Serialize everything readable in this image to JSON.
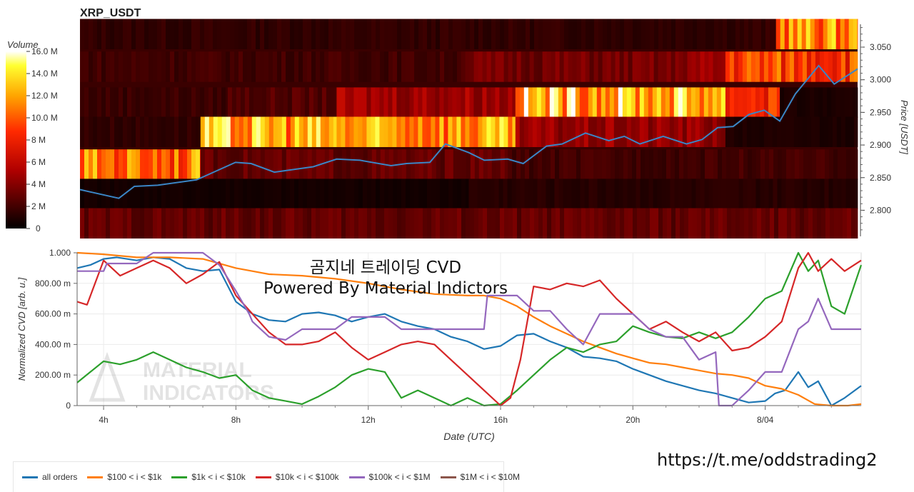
{
  "url_text": "https://t.me/oddstrading2",
  "chart_data": [
    {
      "type": "heatmap",
      "title": "XRP_USDT",
      "ylabel": "Price [USDT]",
      "ylim": [
        2.76,
        3.085
      ],
      "y_ticks": [
        "2.800",
        "2.850",
        "2.900",
        "2.950",
        "3.000",
        "3.050"
      ],
      "colorbar": {
        "title": "Volume",
        "ticks": [
          "0",
          "2 M",
          "4 M",
          "6 M",
          "8 M",
          "10.0 M",
          "12.0 M",
          "14.0 M",
          "16.0 M"
        ],
        "max": 16
      },
      "price_bands": [
        2.78,
        2.825,
        2.87,
        2.92,
        2.965,
        3.02,
        3.07
      ],
      "band_volume_profile": [
        {
          "band": 3.07,
          "pieces": [
            [
              0,
              0.895,
              1.5
            ],
            [
              0.895,
              1.0,
              11.5
            ]
          ]
        },
        {
          "band": 3.02,
          "pieces": [
            [
              0,
              0.49,
              2.0
            ],
            [
              0.49,
              0.77,
              3.5
            ],
            [
              0.77,
              0.83,
              4.5
            ],
            [
              0.83,
              1.0,
              9.5
            ]
          ]
        },
        {
          "band": 2.965,
          "pieces": [
            [
              0,
              0.19,
              1.8
            ],
            [
              0.19,
              0.33,
              2.5
            ],
            [
              0.33,
              0.56,
              5.0
            ],
            [
              0.56,
              0.83,
              13.0
            ],
            [
              0.83,
              0.9,
              9.0
            ],
            [
              0.9,
              1.0,
              0.8
            ]
          ]
        },
        {
          "band": 2.92,
          "pieces": [
            [
              0,
              0.155,
              1.5
            ],
            [
              0.155,
              0.33,
              12.5
            ],
            [
              0.33,
              0.56,
              12.0
            ],
            [
              0.56,
              0.83,
              4.5
            ],
            [
              0.83,
              1.0,
              0.9
            ]
          ]
        },
        {
          "band": 2.87,
          "pieces": [
            [
              0,
              0.155,
              11.0
            ],
            [
              0.155,
              0.55,
              3.0
            ],
            [
              0.55,
              1.0,
              2.0
            ]
          ]
        },
        {
          "band": 2.825,
          "pieces": [
            [
              0,
              0.5,
              0.6
            ],
            [
              0.5,
              1.0,
              1.2
            ]
          ]
        },
        {
          "band": 2.78,
          "pieces": [
            [
              0,
              1.0,
              3.0
            ]
          ]
        }
      ],
      "price_line": {
        "color": "#3b86c6",
        "x": [
          0,
          0.05,
          0.07,
          0.1,
          0.15,
          0.2,
          0.22,
          0.25,
          0.3,
          0.33,
          0.36,
          0.4,
          0.42,
          0.45,
          0.47,
          0.5,
          0.52,
          0.55,
          0.57,
          0.6,
          0.62,
          0.65,
          0.68,
          0.7,
          0.72,
          0.75,
          0.78,
          0.8,
          0.82,
          0.84,
          0.86,
          0.88,
          0.9,
          0.92,
          0.95,
          0.97,
          1.0
        ],
        "y": [
          2.83,
          2.82,
          2.835,
          2.84,
          2.845,
          2.875,
          2.87,
          2.86,
          2.865,
          2.88,
          2.875,
          2.87,
          2.87,
          2.875,
          2.9,
          2.89,
          2.875,
          2.88,
          2.87,
          2.9,
          2.9,
          2.92,
          2.905,
          2.915,
          2.9,
          2.915,
          2.9,
          2.91,
          2.925,
          2.93,
          2.945,
          2.955,
          2.935,
          2.98,
          3.02,
          2.995,
          3.015
        ]
      }
    },
    {
      "type": "line",
      "title": "곰지네 트레이딩 CVD",
      "subtitle": "Powered By Material Indictors",
      "xlabel": "Date (UTC)",
      "ylabel": "Normalized CVD [arb. u.]",
      "ylim": [
        0,
        1
      ],
      "y_ticks": [
        "0",
        "200.00 m",
        "400.00 m",
        "600.00 m",
        "800.00 m",
        "1.000"
      ],
      "x_ticks": [
        "4h",
        "8h",
        "12h",
        "16h",
        "20h",
        "8/04"
      ],
      "x_tick_hours": [
        4,
        8,
        12,
        16,
        20,
        24
      ],
      "x_range_hours": [
        3.2,
        26.9
      ],
      "watermark": [
        "MATERIAL",
        "INDICATORS"
      ],
      "legend_position": "bottom",
      "series": [
        {
          "name": "all orders",
          "color": "#1f77b4",
          "x": [
            3.2,
            3.6,
            4.0,
            4.4,
            5.0,
            5.5,
            6.0,
            6.5,
            7.0,
            7.5,
            8.0,
            8.5,
            9.0,
            9.5,
            10.0,
            10.5,
            11.0,
            11.5,
            12.0,
            12.5,
            13.0,
            13.5,
            14.0,
            14.5,
            15.0,
            15.5,
            16.0,
            16.5,
            17.0,
            17.5,
            18.0,
            18.5,
            19.0,
            19.5,
            20.0,
            20.5,
            21.0,
            21.5,
            22.0,
            22.5,
            23.0,
            23.5,
            24.0,
            24.3,
            24.6,
            25.0,
            25.3,
            25.6,
            26.0,
            26.4,
            26.9
          ],
          "y": [
            0.9,
            0.92,
            0.96,
            0.97,
            0.95,
            0.97,
            0.96,
            0.9,
            0.88,
            0.89,
            0.68,
            0.6,
            0.56,
            0.55,
            0.6,
            0.61,
            0.59,
            0.55,
            0.58,
            0.6,
            0.55,
            0.52,
            0.5,
            0.45,
            0.42,
            0.37,
            0.39,
            0.46,
            0.47,
            0.42,
            0.38,
            0.32,
            0.31,
            0.29,
            0.24,
            0.2,
            0.16,
            0.13,
            0.1,
            0.08,
            0.05,
            0.02,
            0.03,
            0.08,
            0.1,
            0.22,
            0.12,
            0.16,
            0.0,
            0.05,
            0.13
          ]
        },
        {
          "name": "$100 < i < $1k",
          "color": "#ff7f0e",
          "x": [
            3.2,
            4.0,
            5.0,
            6.0,
            7.0,
            8.0,
            9.0,
            10.0,
            11.0,
            12.0,
            13.0,
            14.0,
            15.0,
            15.5,
            16.0,
            16.5,
            17.0,
            17.5,
            18.0,
            18.5,
            19.0,
            19.5,
            20.0,
            20.5,
            21.0,
            21.5,
            22.0,
            22.5,
            23.0,
            23.5,
            24.0,
            24.5,
            25.0,
            25.5,
            26.0,
            26.5,
            26.9
          ],
          "y": [
            1.0,
            0.99,
            0.97,
            0.97,
            0.96,
            0.9,
            0.86,
            0.85,
            0.83,
            0.8,
            0.76,
            0.73,
            0.72,
            0.72,
            0.7,
            0.65,
            0.58,
            0.52,
            0.47,
            0.42,
            0.38,
            0.34,
            0.31,
            0.28,
            0.27,
            0.25,
            0.23,
            0.21,
            0.2,
            0.18,
            0.13,
            0.11,
            0.07,
            0.01,
            0.0,
            0.0,
            0.01
          ]
        },
        {
          "name": "$1k < i < $10k",
          "color": "#2ca02c",
          "x": [
            3.2,
            3.6,
            4.0,
            4.5,
            5.0,
            5.5,
            6.0,
            6.5,
            7.0,
            7.5,
            8.0,
            8.5,
            9.0,
            9.5,
            10.0,
            10.5,
            11.0,
            11.5,
            12.0,
            12.5,
            13.0,
            13.5,
            14.0,
            14.5,
            15.0,
            15.5,
            16.0,
            16.5,
            17.0,
            17.5,
            18.0,
            18.5,
            19.0,
            19.5,
            20.0,
            20.5,
            21.0,
            21.5,
            22.0,
            22.5,
            23.0,
            23.5,
            24.0,
            24.5,
            25.0,
            25.3,
            25.6,
            26.0,
            26.4,
            26.9
          ],
          "y": [
            0.15,
            0.22,
            0.29,
            0.27,
            0.3,
            0.35,
            0.3,
            0.25,
            0.22,
            0.18,
            0.2,
            0.1,
            0.05,
            0.03,
            0.01,
            0.06,
            0.12,
            0.2,
            0.24,
            0.22,
            0.05,
            0.1,
            0.05,
            0.0,
            0.05,
            0.0,
            0.01,
            0.1,
            0.2,
            0.3,
            0.38,
            0.35,
            0.4,
            0.42,
            0.52,
            0.48,
            0.45,
            0.44,
            0.48,
            0.44,
            0.48,
            0.58,
            0.7,
            0.75,
            1.0,
            0.88,
            0.95,
            0.65,
            0.6,
            0.92
          ]
        },
        {
          "name": "$10k < i < $100k",
          "color": "#d62728",
          "x": [
            3.2,
            3.5,
            4.0,
            4.5,
            5.0,
            5.5,
            6.0,
            6.5,
            7.0,
            7.5,
            8.0,
            8.5,
            9.0,
            9.5,
            10.0,
            10.5,
            11.0,
            11.5,
            12.0,
            12.5,
            13.0,
            13.5,
            14.0,
            14.5,
            15.0,
            15.5,
            16.0,
            16.3,
            16.6,
            17.0,
            17.5,
            18.0,
            18.5,
            19.0,
            19.5,
            20.0,
            20.5,
            21.0,
            21.5,
            22.0,
            22.5,
            23.0,
            23.5,
            24.0,
            24.5,
            25.0,
            25.3,
            25.6,
            26.0,
            26.4,
            26.9
          ],
          "y": [
            0.68,
            0.66,
            0.95,
            0.85,
            0.9,
            0.95,
            0.9,
            0.8,
            0.86,
            0.94,
            0.72,
            0.6,
            0.48,
            0.4,
            0.4,
            0.42,
            0.48,
            0.38,
            0.3,
            0.35,
            0.4,
            0.42,
            0.4,
            0.3,
            0.2,
            0.1,
            0.0,
            0.05,
            0.3,
            0.78,
            0.76,
            0.8,
            0.78,
            0.82,
            0.7,
            0.6,
            0.5,
            0.55,
            0.48,
            0.42,
            0.48,
            0.36,
            0.38,
            0.45,
            0.55,
            0.9,
            1.0,
            0.88,
            0.96,
            0.88,
            0.95
          ]
        },
        {
          "name": "$100k < i < $1M",
          "color": "#9467bd",
          "x": [
            3.2,
            4.0,
            4.1,
            5.0,
            5.5,
            6.0,
            6.5,
            7.0,
            7.5,
            8.0,
            8.4,
            8.5,
            9.0,
            9.5,
            10.0,
            10.5,
            11.0,
            11.5,
            12.0,
            12.5,
            13.0,
            13.5,
            14.0,
            14.5,
            15.0,
            15.5,
            15.6,
            16.0,
            16.5,
            17.0,
            17.5,
            18.0,
            18.5,
            19.0,
            19.5,
            20.0,
            20.5,
            21.0,
            21.5,
            22.0,
            22.5,
            22.6,
            23.0,
            23.5,
            24.0,
            24.5,
            25.0,
            25.3,
            25.6,
            26.0,
            26.4,
            26.9
          ],
          "y": [
            0.88,
            0.88,
            0.93,
            0.93,
            1.0,
            1.0,
            1.0,
            1.0,
            0.92,
            0.75,
            0.6,
            0.55,
            0.45,
            0.43,
            0.5,
            0.5,
            0.5,
            0.58,
            0.58,
            0.58,
            0.5,
            0.5,
            0.5,
            0.5,
            0.5,
            0.5,
            0.72,
            0.72,
            0.72,
            0.62,
            0.62,
            0.5,
            0.4,
            0.6,
            0.6,
            0.6,
            0.5,
            0.45,
            0.45,
            0.3,
            0.35,
            0.0,
            0.0,
            0.1,
            0.22,
            0.22,
            0.5,
            0.55,
            0.7,
            0.5,
            0.5,
            0.5
          ]
        },
        {
          "name": "$1M < i < $10M",
          "color": "#8c564b",
          "x": [],
          "y": []
        }
      ]
    }
  ]
}
